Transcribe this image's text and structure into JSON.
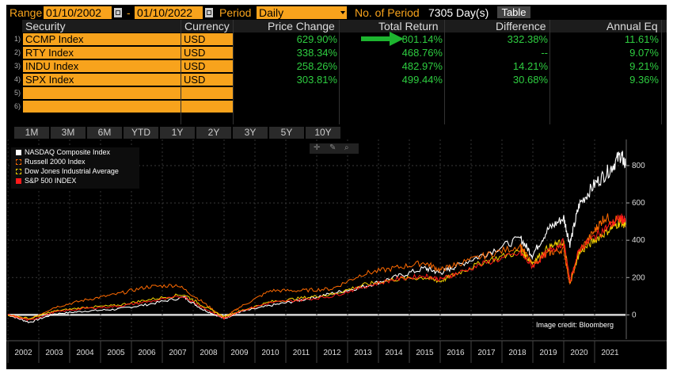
{
  "toolbar": {
    "range_label": "Range",
    "start_date": "01/10/2002",
    "dash": "-",
    "end_date": "01/10/2022",
    "period_label": "Period",
    "period_value": "Daily",
    "num_period_label": "No. of Period",
    "num_period_value": "7305 Day(s)",
    "table_label": "Table"
  },
  "table": {
    "headers": [
      "Security",
      "Currency",
      "Price Change",
      "Total Return",
      "Difference",
      "Annual Eq"
    ],
    "rows": [
      {
        "num": "1)",
        "security": "CCMP Index",
        "currency": "USD",
        "price_change": "629.90%",
        "total_return": "801.14%",
        "difference": "332.38%",
        "annual_eq": "11.61%"
      },
      {
        "num": "2)",
        "security": "RTY Index",
        "currency": "USD",
        "price_change": "338.34%",
        "total_return": "468.76%",
        "difference": "--",
        "annual_eq": "9.07%"
      },
      {
        "num": "3)",
        "security": "INDU Index",
        "currency": "USD",
        "price_change": "258.26%",
        "total_return": "482.97%",
        "difference": "14.21%",
        "annual_eq": "9.21%"
      },
      {
        "num": "4)",
        "security": "SPX Index",
        "currency": "USD",
        "price_change": "303.81%",
        "total_return": "499.44%",
        "difference": "30.68%",
        "annual_eq": "9.36%"
      },
      {
        "num": "5)",
        "security": "",
        "currency": "",
        "price_change": "",
        "total_return": "",
        "difference": "",
        "annual_eq": ""
      },
      {
        "num": "6)",
        "security": "",
        "currency": "",
        "price_change": "",
        "total_return": "",
        "difference": "",
        "annual_eq": ""
      }
    ]
  },
  "period_tabs": [
    "1M",
    "3M",
    "6M",
    "YTD",
    "1Y",
    "2Y",
    "3Y",
    "5Y",
    "10Y"
  ],
  "credit": "Image credit: Bloomberg",
  "colors": {
    "accent": "#f8a31c",
    "green": "#2ecc40",
    "ccmp": "#ffffff",
    "rty": "#ff6a00",
    "indu": "#f2d300",
    "spx": "#ff1a1a"
  },
  "chart_data": {
    "type": "line",
    "x_ticks": [
      "2002",
      "2003",
      "2004",
      "2005",
      "2006",
      "2007",
      "2008",
      "2009",
      "2010",
      "2011",
      "2012",
      "2013",
      "2014",
      "2015",
      "2016",
      "2017",
      "2018",
      "2019",
      "2020",
      "2021"
    ],
    "y_ticks": [
      0,
      200,
      400,
      600,
      800
    ],
    "ylim": [
      -130,
      940
    ],
    "xlim": [
      2002,
      2022
    ],
    "legend_position": "top-left",
    "series": [
      {
        "name": "NASDAQ Composite Index",
        "color": "#ffffff",
        "x": [
          2002,
          2002.7,
          2003.5,
          2004.5,
          2005.5,
          2006.5,
          2007.7,
          2008.3,
          2009.0,
          2009.5,
          2010.5,
          2011.5,
          2012.5,
          2013.5,
          2014.5,
          2015.5,
          2016.0,
          2016.5,
          2017.5,
          2018.6,
          2018.98,
          2019.5,
          2020.0,
          2020.2,
          2020.5,
          2021.0,
          2021.5,
          2021.85,
          2022.0
        ],
        "y": [
          0,
          -40,
          5,
          20,
          30,
          55,
          95,
          30,
          -20,
          15,
          50,
          80,
          115,
          150,
          200,
          250,
          225,
          260,
          330,
          410,
          320,
          460,
          520,
          380,
          590,
          700,
          780,
          860,
          800
        ]
      },
      {
        "name": "Russell 2000 Index",
        "color": "#ff6a00",
        "x": [
          2002,
          2002.7,
          2003.5,
          2004.5,
          2005.5,
          2006.5,
          2007.5,
          2008.3,
          2009.0,
          2009.5,
          2010.5,
          2011.5,
          2012.5,
          2013.5,
          2014.5,
          2015.5,
          2016.0,
          2016.5,
          2017.5,
          2018.6,
          2018.98,
          2019.5,
          2020.0,
          2020.2,
          2020.5,
          2021.0,
          2021.3,
          2021.85,
          2022.0
        ],
        "y": [
          0,
          -25,
          40,
          80,
          110,
          150,
          160,
          70,
          -15,
          40,
          130,
          130,
          140,
          220,
          250,
          280,
          240,
          270,
          320,
          370,
          270,
          330,
          350,
          160,
          340,
          450,
          520,
          510,
          470
        ]
      },
      {
        "name": "Dow Jones Industrial Average",
        "color": "#f2d300",
        "x": [
          2002,
          2002.7,
          2003.5,
          2004.5,
          2005.5,
          2006.5,
          2007.7,
          2008.3,
          2009.0,
          2009.5,
          2010.5,
          2011.5,
          2012.5,
          2013.5,
          2014.5,
          2015.5,
          2016.0,
          2016.5,
          2017.5,
          2018.6,
          2018.98,
          2019.5,
          2020.0,
          2020.2,
          2020.5,
          2021.0,
          2021.5,
          2021.85,
          2022.0
        ],
        "y": [
          0,
          -20,
          20,
          40,
          50,
          80,
          110,
          50,
          -10,
          20,
          70,
          90,
          110,
          160,
          190,
          200,
          180,
          220,
          290,
          340,
          280,
          360,
          390,
          180,
          330,
          400,
          460,
          500,
          483
        ]
      },
      {
        "name": "S&P 500 INDEX",
        "color": "#ff1a1a",
        "x": [
          2002,
          2002.7,
          2003.5,
          2004.5,
          2005.5,
          2006.5,
          2007.7,
          2008.3,
          2009.0,
          2009.5,
          2010.5,
          2011.5,
          2012.5,
          2013.5,
          2014.5,
          2015.5,
          2016.0,
          2016.5,
          2017.5,
          2018.6,
          2018.98,
          2019.5,
          2020.0,
          2020.2,
          2020.5,
          2021.0,
          2021.5,
          2021.85,
          2022.0
        ],
        "y": [
          0,
          -30,
          15,
          35,
          45,
          70,
          100,
          40,
          -20,
          20,
          65,
          80,
          100,
          150,
          190,
          210,
          190,
          220,
          280,
          330,
          260,
          340,
          390,
          180,
          350,
          420,
          480,
          520,
          499
        ]
      }
    ]
  }
}
